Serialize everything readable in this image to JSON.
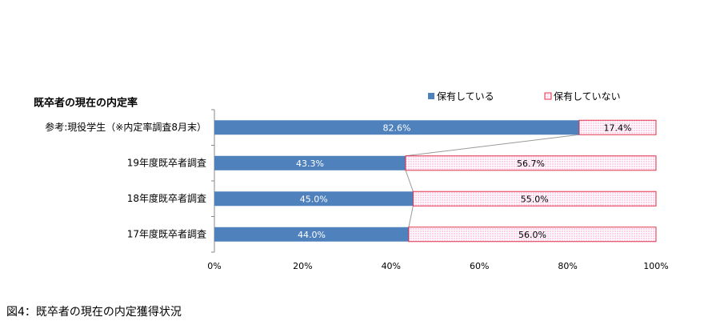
{
  "chart_data": {
    "type": "stacked-bar-horizontal",
    "title": "既卒者の現在の内定率",
    "caption": "図4：既卒者の現在の内定獲得状況",
    "categories": [
      "参考:現役学生（※内定率調査8月末）",
      "19年度既卒者調査",
      "18年度既卒者調査",
      "17年度既卒者調査"
    ],
    "series": [
      {
        "name": "保有している",
        "color": "#4f81bd",
        "values": [
          82.6,
          43.3,
          45.0,
          44.0
        ],
        "value_labels": [
          "82.6%",
          "43.3%",
          "45.0%",
          "44.0%"
        ]
      },
      {
        "name": "保有していない",
        "color": "#ffd0ea",
        "edge_color": "#e2304a",
        "values": [
          17.4,
          56.7,
          55.0,
          56.0
        ],
        "value_labels": [
          "17.4%",
          "56.7%",
          "55.0%",
          "56.0%"
        ]
      }
    ],
    "xlim": [
      0,
      100
    ],
    "xticks": [
      {
        "value": 0,
        "label": "0%"
      },
      {
        "value": 20,
        "label": "20%"
      },
      {
        "value": 40,
        "label": "40%"
      },
      {
        "value": 60,
        "label": "60%"
      },
      {
        "value": 80,
        "label": "80%"
      },
      {
        "value": 100,
        "label": "100%"
      }
    ],
    "series_lines": true,
    "legend": "top"
  }
}
